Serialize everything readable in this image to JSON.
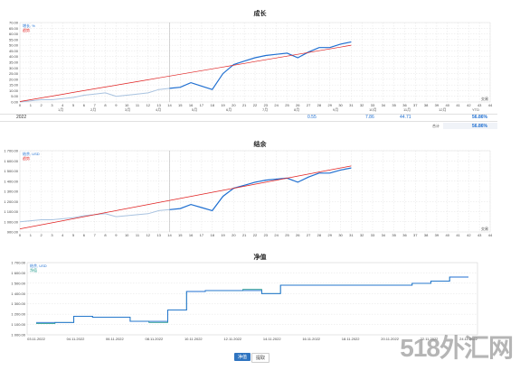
{
  "chart1": {
    "title": "成长",
    "legend": [
      "增长, %",
      "趋势"
    ],
    "y_ticks": [
      "70.00",
      "65.00",
      "60.00",
      "55.00",
      "50.00",
      "45.00",
      "40.00",
      "35.00",
      "30.00",
      "25.00",
      "20.00",
      "15.00",
      "10.00",
      "5.00",
      "0.00"
    ],
    "x_ticks": [
      "0",
      "1",
      "2",
      "3",
      "4",
      "5",
      "6",
      "7",
      "8",
      "9",
      "10",
      "11",
      "12",
      "13",
      "14",
      "15",
      "16",
      "17",
      "18",
      "19",
      "20",
      "21",
      "22",
      "23",
      "24",
      "25",
      "26",
      "27",
      "28",
      "29",
      "30",
      "31",
      "32",
      "33",
      "34",
      "35",
      "36",
      "37",
      "38",
      "39",
      "40",
      "41",
      "42",
      "43",
      "44"
    ],
    "x_axis_name": "交易"
  },
  "summary": {
    "month_labels": [
      "1月",
      "2月",
      "3月",
      "4月",
      "5月",
      "6月",
      "7月",
      "8月",
      "9月",
      "10月",
      "11月",
      "12月",
      "YTD"
    ],
    "year": "2022",
    "values": [
      "0.55",
      "7.86",
      "44.71",
      "56.86%"
    ],
    "total_label": "合计",
    "total_value": "56.86%"
  },
  "chart2": {
    "title": "结余",
    "legend": [
      "结余, USD",
      "趋势"
    ],
    "y_ticks": [
      "1 700.00",
      "1 600.00",
      "1 500.00",
      "1 400.00",
      "1 300.00",
      "1 200.00",
      "1 100.00",
      "1 000.00",
      "900.00"
    ],
    "x_ticks": [
      "0",
      "1",
      "2",
      "3",
      "4",
      "5",
      "6",
      "7",
      "8",
      "9",
      "10",
      "11",
      "12",
      "13",
      "14",
      "15",
      "16",
      "17",
      "18",
      "19",
      "20",
      "21",
      "22",
      "23",
      "24",
      "25",
      "26",
      "27",
      "28",
      "29",
      "30",
      "31",
      "32",
      "33",
      "34",
      "35",
      "36",
      "37",
      "38",
      "39",
      "40",
      "41",
      "42",
      "43",
      "44"
    ],
    "x_axis_name": "交易"
  },
  "chart3": {
    "title": "净值",
    "legend": [
      "结余, USD",
      "净值"
    ],
    "y_ticks": [
      "1 700.00",
      "1 600.00",
      "1 500.00",
      "1 400.00",
      "1 300.00",
      "1 200.00",
      "1 100.00",
      "1 000.00"
    ],
    "x_ticks": [
      "03.11.2022",
      "04.11.2022",
      "06.11.2022",
      "08.11.2022",
      "10.11.2022",
      "12.11.2022",
      "14.11.2022",
      "16.11.2022",
      "18.11.2022",
      "20.11.2022",
      "22.11.2022",
      "24.11.2022"
    ]
  },
  "buttons": {
    "equity": "净值",
    "drawdown": "提取"
  },
  "watermark": "518外汇网",
  "colors": {
    "growth": "#1f6fd1",
    "history": "#a9c3e0",
    "trend": "#e02020",
    "equity": "#2a9d8f"
  },
  "chart_data": [
    {
      "type": "line",
      "title": "成长",
      "x": [
        0,
        1,
        2,
        3,
        4,
        5,
        6,
        7,
        8,
        9,
        10,
        11,
        12,
        13,
        14,
        15,
        16,
        17,
        18,
        19,
        20,
        21,
        22,
        23,
        24,
        25,
        26,
        27,
        28,
        29,
        30,
        31
      ],
      "series": [
        {
          "name": "增长, %",
          "values": [
            0,
            1,
            2,
            2,
            3,
            4,
            6,
            7,
            8,
            5,
            6,
            7,
            8,
            11,
            12,
            13,
            17,
            14,
            11,
            25,
            33,
            36,
            39,
            41,
            42,
            43,
            39,
            44,
            48,
            48,
            51,
            53
          ]
        },
        {
          "name": "趋势",
          "values": [
            0.4,
            2,
            3.6,
            5.2,
            6.8,
            8.4,
            10,
            11.6,
            13.2,
            14.8,
            16.4,
            18,
            19.6,
            21.2,
            22.8,
            24.4,
            26,
            27.6,
            29.2,
            30.8,
            32.4,
            34,
            35.6,
            37.2,
            38.8,
            40.4,
            42,
            43.6,
            45.2,
            46.8,
            48.4,
            50
          ]
        }
      ],
      "ylim": [
        0,
        70
      ]
    },
    {
      "type": "line",
      "title": "结余",
      "x": [
        0,
        1,
        2,
        3,
        4,
        5,
        6,
        7,
        8,
        9,
        10,
        11,
        12,
        13,
        14,
        15,
        16,
        17,
        18,
        19,
        20,
        21,
        22,
        23,
        24,
        25,
        26,
        27,
        28,
        29,
        30,
        31
      ],
      "series": [
        {
          "name": "结余, USD",
          "values": [
            1000,
            1010,
            1020,
            1020,
            1030,
            1040,
            1060,
            1070,
            1080,
            1050,
            1060,
            1070,
            1080,
            1110,
            1120,
            1130,
            1170,
            1140,
            1110,
            1250,
            1330,
            1360,
            1390,
            1410,
            1420,
            1430,
            1390,
            1440,
            1480,
            1480,
            1510,
            1530
          ]
        },
        {
          "name": "趋势",
          "values": [
            930,
            950,
            970,
            990,
            1010,
            1030,
            1050,
            1070,
            1090,
            1110,
            1130,
            1150,
            1170,
            1190,
            1210,
            1230,
            1250,
            1270,
            1290,
            1310,
            1330,
            1350,
            1370,
            1390,
            1410,
            1430,
            1450,
            1470,
            1490,
            1510,
            1530,
            1550
          ]
        }
      ],
      "ylim": [
        900,
        1700
      ]
    },
    {
      "type": "line",
      "title": "净值",
      "x": [
        "03.11.2022",
        "04.11.2022",
        "05.11.2022",
        "06.11.2022",
        "07.11.2022",
        "08.11.2022",
        "09.11.2022",
        "10.11.2022",
        "11.11.2022",
        "12.11.2022",
        "13.11.2022",
        "14.11.2022",
        "15.11.2022",
        "16.11.2022",
        "17.11.2022",
        "18.11.2022",
        "19.11.2022",
        "20.11.2022",
        "21.11.2022",
        "22.11.2022",
        "23.11.2022",
        "24.11.2022",
        "25.11.2022",
        "26.11.2022"
      ],
      "series": [
        {
          "name": "结余, USD",
          "values": [
            1120,
            1120,
            1180,
            1170,
            1170,
            1130,
            1130,
            1240,
            1420,
            1430,
            1430,
            1430,
            1400,
            1480,
            1480,
            1480,
            1480,
            1480,
            1480,
            1480,
            1500,
            1520,
            1560,
            1560
          ]
        },
        {
          "name": "净值",
          "values": [
            1110,
            1120,
            1180,
            1170,
            1170,
            1130,
            1120,
            1240,
            1420,
            1430,
            1430,
            1440,
            1400,
            1480,
            1480,
            1480,
            1480,
            1480,
            1480,
            1480,
            1500,
            1520,
            1560,
            1560
          ]
        }
      ],
      "ylim": [
        1000,
        1700
      ]
    }
  ]
}
